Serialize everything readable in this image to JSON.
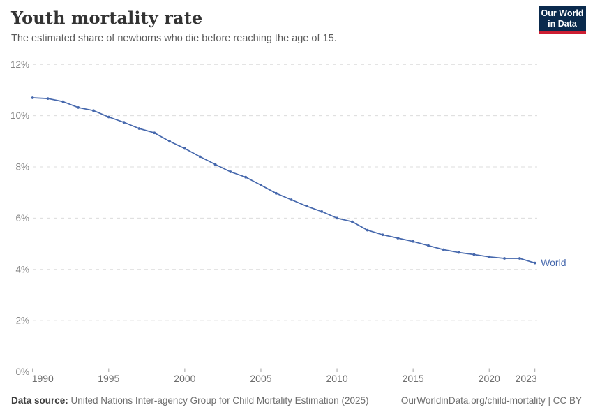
{
  "header": {
    "title": "Youth mortality rate",
    "subtitle": "The estimated share of newborns who die before reaching the age of 15."
  },
  "logo": {
    "line1": "Our World",
    "line2": "in Data",
    "bg_color": "#0a2a4d",
    "accent_color": "#cd1e32"
  },
  "chart_data": {
    "type": "line",
    "title": "Youth mortality rate",
    "xlabel": "",
    "ylabel": "",
    "xlim": [
      1990,
      2023
    ],
    "ylim": [
      0,
      12
    ],
    "grid": "horizontal-dashed",
    "x_ticks": [
      1990,
      1995,
      2000,
      2005,
      2010,
      2015,
      2020,
      2023
    ],
    "y_tick_values": [
      0,
      2,
      4,
      6,
      8,
      10,
      12
    ],
    "y_tick_labels": [
      "0%",
      "2%",
      "4%",
      "6%",
      "8%",
      "10%",
      "12%"
    ],
    "legend_position": "end-of-line-label",
    "series": [
      {
        "name": "World",
        "color": "#4668ad",
        "x": [
          1990,
          1991,
          1992,
          1993,
          1994,
          1995,
          1996,
          1997,
          1998,
          1999,
          2000,
          2001,
          2002,
          2003,
          2004,
          2005,
          2006,
          2007,
          2008,
          2009,
          2010,
          2011,
          2012,
          2013,
          2014,
          2015,
          2016,
          2017,
          2018,
          2019,
          2020,
          2021,
          2022,
          2023
        ],
        "values": [
          10.7,
          10.67,
          10.55,
          10.32,
          10.2,
          9.95,
          9.74,
          9.5,
          9.33,
          9.0,
          8.72,
          8.4,
          8.1,
          7.81,
          7.6,
          7.29,
          6.97,
          6.72,
          6.47,
          6.26,
          6.0,
          5.86,
          5.53,
          5.35,
          5.22,
          5.09,
          4.93,
          4.77,
          4.66,
          4.58,
          4.49,
          4.43,
          4.43,
          4.25
        ]
      }
    ]
  },
  "footer": {
    "source_label": "Data source:",
    "source_text": " United Nations Inter-agency Group for Child Mortality Estimation (2025)",
    "citation": "OurWorldinData.org/child-mortality | CC BY"
  }
}
